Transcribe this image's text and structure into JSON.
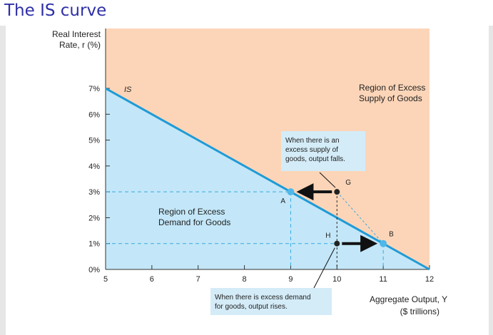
{
  "page": {
    "title": "The IS curve"
  },
  "chart_data": {
    "type": "line",
    "title": "",
    "ylabel_lines": [
      "Real Interest",
      "Rate, r (%)"
    ],
    "xlabel_lines": [
      "Aggregate Output, Y",
      "($ trillions)"
    ],
    "xlim": [
      5,
      12
    ],
    "ylim": [
      0,
      7
    ],
    "x_ticks": [
      5,
      6,
      7,
      8,
      9,
      10,
      11,
      12
    ],
    "y_ticks": [
      {
        "value": 0,
        "label": "0%"
      },
      {
        "value": 1,
        "label": "1%"
      },
      {
        "value": 2,
        "label": "2%"
      },
      {
        "value": 3,
        "label": "3%"
      },
      {
        "value": 4,
        "label": "4%"
      },
      {
        "value": 5,
        "label": "5%"
      },
      {
        "value": 6,
        "label": "6%"
      },
      {
        "value": 7,
        "label": "7%"
      }
    ],
    "series": [
      {
        "name": "IS",
        "color": "#1f9bd7",
        "points": [
          {
            "x": 5,
            "y": 7
          },
          {
            "x": 12,
            "y": 0
          }
        ]
      }
    ],
    "points": [
      {
        "label": "A",
        "x": 9,
        "y": 3,
        "color": "#4fb8e8",
        "on_curve": true
      },
      {
        "label": "G",
        "x": 10,
        "y": 3,
        "color": "#222222",
        "on_curve": false
      },
      {
        "label": "H",
        "x": 10,
        "y": 1,
        "color": "#222222",
        "on_curve": false
      },
      {
        "label": "B",
        "x": 11,
        "y": 1,
        "color": "#4fb8e8",
        "on_curve": true
      }
    ],
    "regions": {
      "supply": {
        "label_lines": [
          "Region of Excess",
          "Supply of Goods"
        ],
        "color": "#fcd5b8"
      },
      "demand": {
        "label_lines": [
          "Region of Excess",
          "Demand for Goods"
        ],
        "color": "#c3e7f8"
      }
    },
    "annotations": {
      "supply_note": [
        "When there is an",
        "excess supply of",
        "goods, output falls."
      ],
      "demand_note": [
        "When there is excess demand",
        "for goods, output rises."
      ]
    },
    "colors": {
      "supply_region": "#fcd5b8",
      "demand_region": "#c3e7f8",
      "is_line": "#1f9bd7",
      "note_box": "#d4ecf8"
    }
  }
}
